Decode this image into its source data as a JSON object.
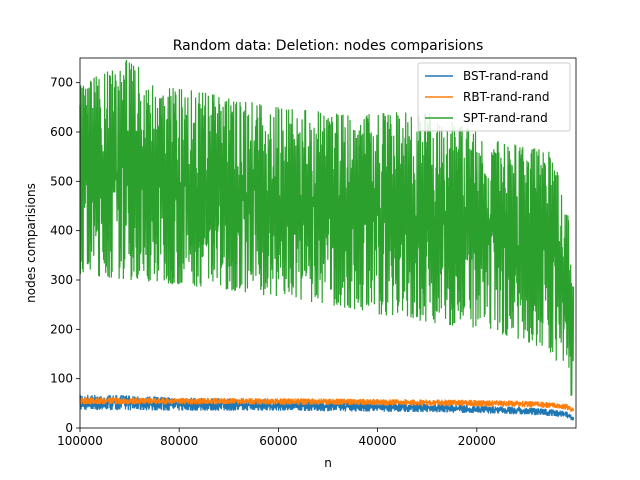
{
  "chart_data": {
    "type": "line",
    "title": "Random data: Deletion: nodes comparisions",
    "xlabel": "n",
    "ylabel": "nodes comparisions",
    "xlim": [
      100000,
      0
    ],
    "ylim": [
      0,
      750
    ],
    "x_ticks": [
      100000,
      80000,
      60000,
      40000,
      20000
    ],
    "x_tick_labels": [
      "100000",
      "80000",
      "60000",
      "40000",
      "20000"
    ],
    "y_ticks": [
      0,
      100,
      200,
      300,
      400,
      500,
      600,
      700
    ],
    "y_tick_labels": [
      "0",
      "100",
      "200",
      "300",
      "400",
      "500",
      "600",
      "700"
    ],
    "legend_position": "top-right",
    "grid": false,
    "series": [
      {
        "name": "BST-rand-rand",
        "color": "#1f77b4",
        "x": [
          100000,
          90000,
          80000,
          70000,
          60000,
          50000,
          40000,
          30000,
          20000,
          10000,
          5000,
          2000,
          500
        ],
        "low": [
          36,
          36,
          35,
          35,
          35,
          34,
          33,
          32,
          30,
          27,
          24,
          21,
          14
        ],
        "high": [
          68,
          66,
          62,
          60,
          58,
          56,
          54,
          50,
          46,
          42,
          38,
          34,
          24
        ]
      },
      {
        "name": "RBT-rand-rand",
        "color": "#ff7f0e",
        "x": [
          100000,
          90000,
          80000,
          70000,
          60000,
          50000,
          40000,
          30000,
          20000,
          10000,
          5000,
          2000,
          500
        ],
        "low": [
          48,
          48,
          48,
          48,
          47,
          47,
          46,
          45,
          44,
          42,
          40,
          37,
          30
        ],
        "high": [
          62,
          62,
          61,
          61,
          60,
          60,
          59,
          58,
          57,
          55,
          52,
          49,
          40
        ]
      },
      {
        "name": "SPT-rand-rand",
        "color": "#2ca02c",
        "x": [
          100000,
          95000,
          90000,
          85000,
          80000,
          70000,
          60000,
          50000,
          40000,
          30000,
          20000,
          15000,
          10000,
          5000,
          2000,
          500
        ],
        "low": [
          310,
          305,
          300,
          295,
          290,
          280,
          265,
          250,
          230,
          215,
          200,
          190,
          175,
          150,
          110,
          40
        ],
        "high": [
          700,
          720,
          750,
          700,
          690,
          670,
          650,
          640,
          640,
          640,
          600,
          580,
          570,
          560,
          460,
          350
        ]
      }
    ]
  }
}
